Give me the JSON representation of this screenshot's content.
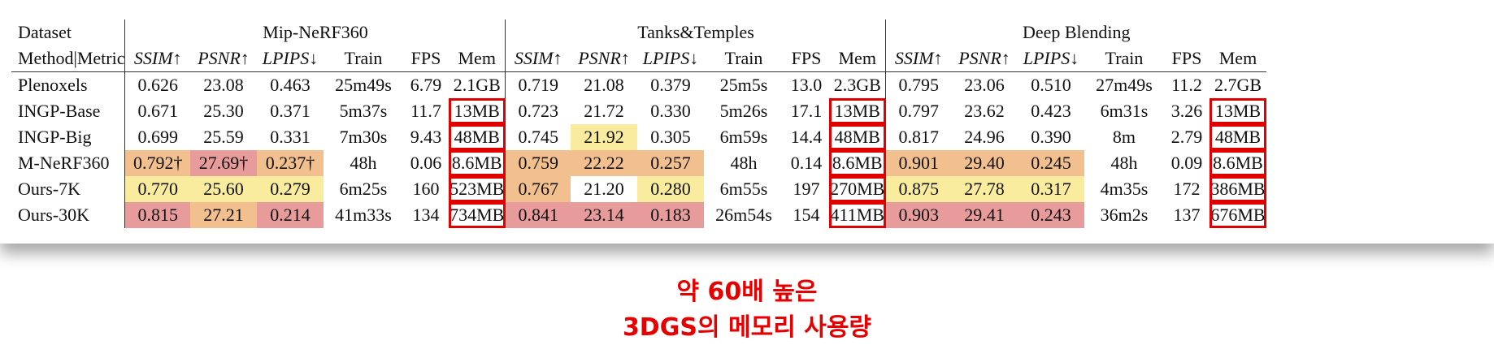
{
  "table": {
    "dataset_label": "Dataset",
    "method_metric_label": "Method|Metric",
    "groups": [
      "Mip-NeRF360",
      "Tanks&Temples",
      "Deep Blending"
    ],
    "col_headers": [
      "SSIM↑",
      "PSNR↑",
      "LPIPS↓",
      "Train",
      "FPS",
      "Mem"
    ],
    "rows": [
      {
        "method": "Plenoxels",
        "cells": [
          "0.626",
          "23.08",
          "0.463",
          "25m49s",
          "6.79",
          "2.1GB",
          "0.719",
          "21.08",
          "0.379",
          "25m5s",
          "13.0",
          "2.3GB",
          "0.795",
          "23.06",
          "0.510",
          "27m49s",
          "11.2",
          "2.7GB"
        ]
      },
      {
        "method": "INGP-Base",
        "cells": [
          "0.671",
          "25.30",
          "0.371",
          "5m37s",
          "11.7",
          "13MB",
          "0.723",
          "21.72",
          "0.330",
          "5m26s",
          "17.1",
          "13MB",
          "0.797",
          "23.62",
          "0.423",
          "6m31s",
          "3.26",
          "13MB"
        ]
      },
      {
        "method": "INGP-Big",
        "cells": [
          "0.699",
          "25.59",
          "0.331",
          "7m30s",
          "9.43",
          "48MB",
          "0.745",
          "21.92",
          "0.305",
          "6m59s",
          "14.4",
          "48MB",
          "0.817",
          "24.96",
          "0.390",
          "8m",
          "2.79",
          "48MB"
        ]
      },
      {
        "method": "M-NeRF360",
        "cells": [
          "0.792†",
          "27.69†",
          "0.237†",
          "48h",
          "0.06",
          "8.6MB",
          "0.759",
          "22.22",
          "0.257",
          "48h",
          "0.14",
          "8.6MB",
          "0.901",
          "29.40",
          "0.245",
          "48h",
          "0.09",
          "8.6MB"
        ]
      },
      {
        "method": "Ours-7K",
        "cells": [
          "0.770",
          "25.60",
          "0.279",
          "6m25s",
          "160",
          "523MB",
          "0.767",
          "21.20",
          "0.280",
          "6m55s",
          "197",
          "270MB",
          "0.875",
          "27.78",
          "0.317",
          "4m35s",
          "172",
          "386MB"
        ]
      },
      {
        "method": "Ours-30K",
        "cells": [
          "0.815",
          "27.21",
          "0.214",
          "41m33s",
          "134",
          "734MB",
          "0.841",
          "23.14",
          "0.183",
          "26m54s",
          "154",
          "411MB",
          "0.903",
          "29.41",
          "0.243",
          "36m2s",
          "137",
          "676MB"
        ]
      }
    ]
  },
  "annotation": {
    "line1": "약 60배 높은",
    "line2": "3DGS의 메모리 사용량"
  },
  "colors": {
    "rank1": "#e79b9b",
    "rank2": "#f2c08f",
    "rank3": "#f9ec9e",
    "highlight_box": "#e00000",
    "annotation_text": "#e60000"
  }
}
